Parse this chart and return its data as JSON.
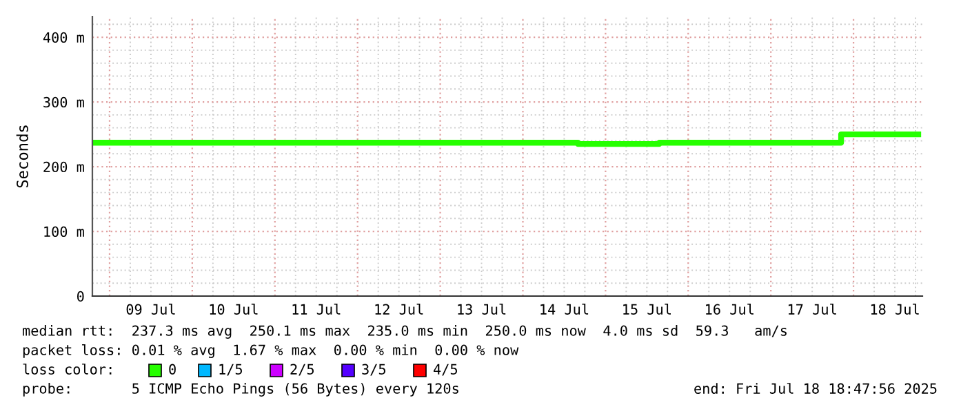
{
  "chart_data": {
    "type": "step",
    "ylabel": "Seconds",
    "x": [
      "2025-07-08T19:12",
      "2025-07-14T16:00",
      "2025-07-15T15:36",
      "2025-07-17T20:24",
      "2025-07-18T18:48"
    ],
    "series": [
      {
        "name": "0",
        "color": "#26ff00",
        "values": [
          237,
          235,
          237,
          250,
          250
        ]
      },
      {
        "name": "1/5",
        "color": "#00b8ff",
        "values": [
          null,
          null,
          null,
          null,
          null
        ]
      },
      {
        "name": "2/5",
        "color": "#cc00ff",
        "values": [
          null,
          null,
          null,
          null,
          null
        ]
      },
      {
        "name": "3/5",
        "color": "#5400ff",
        "values": [
          null,
          null,
          null,
          null,
          null
        ]
      },
      {
        "name": "4/5",
        "color": "#ff0000",
        "values": [
          null,
          null,
          null,
          null,
          null
        ]
      }
    ],
    "legend_title": "loss color:",
    "legend": "bottom",
    "xlim": [
      "2025-07-08T19:00",
      "2025-07-18T20:00"
    ],
    "xticks": [
      {
        "value": "2025-07-09T12:00",
        "label": "09 Jul"
      },
      {
        "value": "2025-07-10T12:00",
        "label": "10 Jul"
      },
      {
        "value": "2025-07-11T12:00",
        "label": "11 Jul"
      },
      {
        "value": "2025-07-12T12:00",
        "label": "12 Jul"
      },
      {
        "value": "2025-07-13T12:00",
        "label": "13 Jul"
      },
      {
        "value": "2025-07-14T12:00",
        "label": "14 Jul"
      },
      {
        "value": "2025-07-15T12:00",
        "label": "15 Jul"
      },
      {
        "value": "2025-07-16T12:00",
        "label": "16 Jul"
      },
      {
        "value": "2025-07-17T12:00",
        "label": "17 Jul"
      },
      {
        "value": "2025-07-18T12:00",
        "label": "18 Jul"
      }
    ],
    "ylim": [
      0,
      432
    ],
    "yticks": [
      {
        "value": 0,
        "label": "0"
      },
      {
        "value": 100,
        "label": "100 m"
      },
      {
        "value": 200,
        "label": "200 m"
      },
      {
        "value": 300,
        "label": "300 m"
      },
      {
        "value": 400,
        "label": "400 m"
      }
    ],
    "grid": true,
    "annotations": [
      "median rtt:  237.3 ms avg  250.1 ms max  235.0 ms min  250.0 ms now  4.0 ms sd  59.3   am/s",
      "packet loss: 0.01 % avg  1.67 % max  0.00 % min  0.00 % now",
      "probe:       5 ICMP Echo Pings (56 Bytes) every 120s",
      "end: Fri Jul 18 18:47:56 2025"
    ]
  }
}
